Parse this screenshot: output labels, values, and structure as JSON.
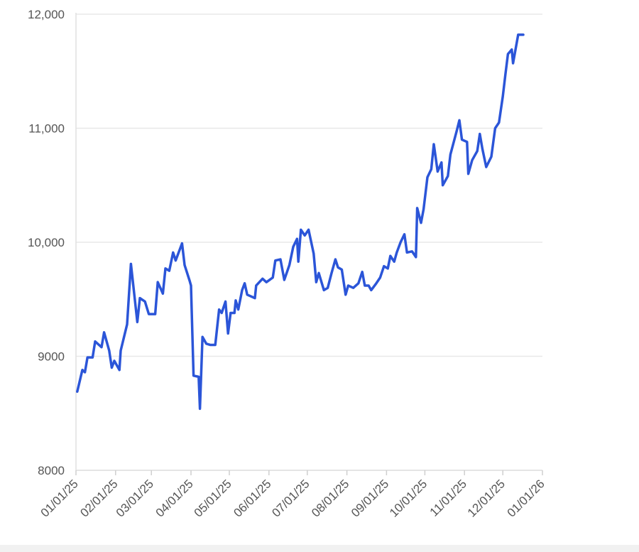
{
  "chart_data": {
    "type": "line",
    "color": "#2b55d8",
    "grid": true,
    "xlim": [
      "2025-01-01",
      "2026-01-01"
    ],
    "xticks": [
      {
        "value": "2025-01-01",
        "label": "01/01/25"
      },
      {
        "value": "2025-02-01",
        "label": "02/01/25"
      },
      {
        "value": "2025-03-01",
        "label": "03/01/25"
      },
      {
        "value": "2025-04-01",
        "label": "04/01/25"
      },
      {
        "value": "2025-05-01",
        "label": "05/01/25"
      },
      {
        "value": "2025-06-01",
        "label": "06/01/25"
      },
      {
        "value": "2025-07-01",
        "label": "07/01/25"
      },
      {
        "value": "2025-08-01",
        "label": "08/01/25"
      },
      {
        "value": "2025-09-01",
        "label": "09/01/25"
      },
      {
        "value": "2025-10-01",
        "label": "10/01/25"
      },
      {
        "value": "2025-11-01",
        "label": "11/01/25"
      },
      {
        "value": "2025-12-01",
        "label": "12/01/25"
      },
      {
        "value": "2026-01-01",
        "label": "01/01/26"
      }
    ],
    "ylim": [
      8000,
      12000
    ],
    "yticks": [
      8000,
      9000,
      {
        "value": 10000,
        "label": "10,000"
      },
      {
        "value": 11000,
        "label": "11,000"
      },
      {
        "value": 12000,
        "label": "12,000"
      }
    ],
    "x": [
      "2025-01-02",
      "2025-01-06",
      "2025-01-08",
      "2025-01-10",
      "2025-01-14",
      "2025-01-16",
      "2025-01-21",
      "2025-01-23",
      "2025-01-27",
      "2025-01-29",
      "2025-01-31",
      "2025-02-04",
      "2025-02-05",
      "2025-02-10",
      "2025-02-13",
      "2025-02-18",
      "2025-02-20",
      "2025-02-24",
      "2025-02-27",
      "2025-03-04",
      "2025-03-06",
      "2025-03-10",
      "2025-03-12",
      "2025-03-15",
      "2025-03-18",
      "2025-03-20",
      "2025-03-25",
      "2025-03-27",
      "2025-03-31",
      "2025-04-01",
      "2025-04-03",
      "2025-04-07",
      "2025-04-08",
      "2025-04-10",
      "2025-04-13",
      "2025-04-16",
      "2025-04-20",
      "2025-04-23",
      "2025-04-25",
      "2025-04-28",
      "2025-04-30",
      "2025-05-02",
      "2025-05-05",
      "2025-05-06",
      "2025-05-08",
      "2025-05-11",
      "2025-05-13",
      "2025-05-15",
      "2025-05-21",
      "2025-05-22",
      "2025-05-27",
      "2025-05-30",
      "2025-06-04",
      "2025-06-06",
      "2025-06-10",
      "2025-06-13",
      "2025-06-17",
      "2025-06-20",
      "2025-06-23",
      "2025-06-24",
      "2025-06-26",
      "2025-06-29",
      "2025-07-02",
      "2025-07-06",
      "2025-07-08",
      "2025-07-10",
      "2025-07-14",
      "2025-07-17",
      "2025-07-20",
      "2025-07-23",
      "2025-07-25",
      "2025-07-28",
      "2025-07-31",
      "2025-08-02",
      "2025-08-06",
      "2025-08-10",
      "2025-08-13",
      "2025-08-15",
      "2025-08-18",
      "2025-08-20",
      "2025-08-24",
      "2025-08-27",
      "2025-08-30",
      "2025-09-02",
      "2025-09-04",
      "2025-09-07",
      "2025-09-09",
      "2025-09-12",
      "2025-09-15",
      "2025-09-17",
      "2025-09-21",
      "2025-09-24",
      "2025-09-25",
      "2025-09-28",
      "2025-09-30",
      "2025-10-03",
      "2025-10-06",
      "2025-10-08",
      "2025-10-11",
      "2025-10-14",
      "2025-10-15",
      "2025-10-19",
      "2025-10-21",
      "2025-10-26",
      "2025-10-28",
      "2025-10-30",
      "2025-11-03",
      "2025-11-04",
      "2025-11-07",
      "2025-11-11",
      "2025-11-13",
      "2025-11-15",
      "2025-11-18",
      "2025-11-22",
      "2025-11-25",
      "2025-11-28",
      "2025-12-01",
      "2025-12-03",
      "2025-12-05",
      "2025-12-08",
      "2025-12-09",
      "2025-12-13",
      "2025-12-17"
    ],
    "values": [
      8690,
      8880,
      8860,
      8990,
      8990,
      9130,
      9080,
      9210,
      9050,
      8900,
      8960,
      8880,
      9050,
      9280,
      9810,
      9300,
      9510,
      9480,
      9370,
      9370,
      9650,
      9550,
      9770,
      9750,
      9910,
      9840,
      9990,
      9800,
      9660,
      9620,
      8830,
      8820,
      8540,
      9170,
      9110,
      9100,
      9100,
      9410,
      9380,
      9480,
      9200,
      9380,
      9380,
      9490,
      9410,
      9580,
      9640,
      9540,
      9510,
      9620,
      9680,
      9650,
      9690,
      9840,
      9850,
      9670,
      9800,
      9960,
      10030,
      9830,
      10110,
      10060,
      10110,
      9900,
      9650,
      9730,
      9580,
      9600,
      9730,
      9850,
      9780,
      9760,
      9540,
      9620,
      9600,
      9640,
      9740,
      9620,
      9620,
      9580,
      9640,
      9690,
      9790,
      9770,
      9880,
      9830,
      9910,
      10000,
      10070,
      9910,
      9920,
      9870,
      10300,
      10170,
      10290,
      10570,
      10640,
      10860,
      10620,
      10700,
      10500,
      10580,
      10770,
      10980,
      11070,
      10900,
      10880,
      10600,
      10720,
      10800,
      10950,
      10820,
      10660,
      10750,
      11000,
      11050,
      11280,
      11470,
      11650,
      11690,
      11570,
      11820,
      11820
    ]
  }
}
